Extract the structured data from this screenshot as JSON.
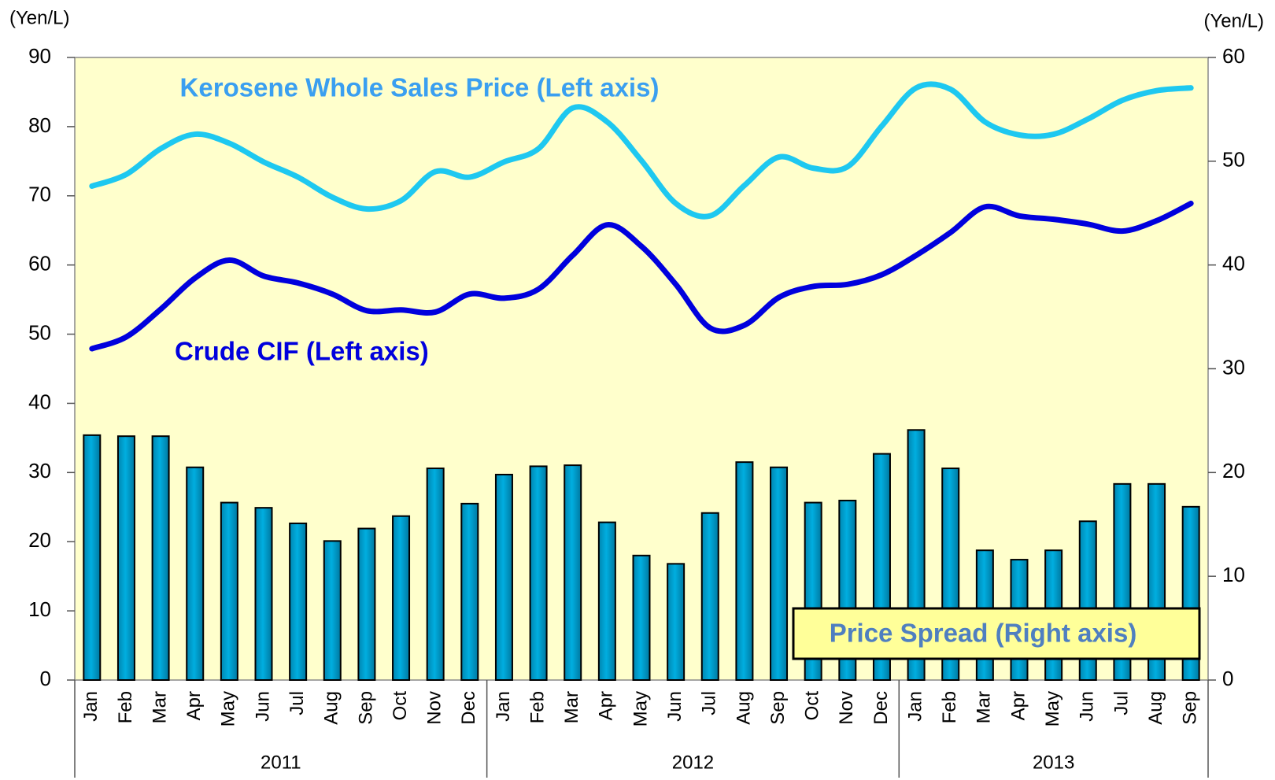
{
  "chart_data": {
    "type": "bar-line",
    "y_label": "(Yen/L)",
    "y2_label": "(Yen/L)",
    "categories": [
      "Jan",
      "Feb",
      "Mar",
      "Apr",
      "May",
      "Jun",
      "Jul",
      "Aug",
      "Sep",
      "Oct",
      "Nov",
      "Dec",
      "Jan",
      "Feb",
      "Mar",
      "Apr",
      "May",
      "Jun",
      "Jul",
      "Aug",
      "Sep",
      "Oct",
      "Nov",
      "Dec",
      "Jan",
      "Feb",
      "Mar",
      "Apr",
      "May",
      "Jun",
      "Jul",
      "Aug",
      "Sep"
    ],
    "x_groups": [
      "2011",
      "2012",
      "2013"
    ],
    "series": [
      {
        "name": "Kerosene Whole Sales Price (Left axis)",
        "kind": "line",
        "color": "#1ec8f0",
        "label_color": "#3a9ff0",
        "values": [
          71.4,
          73.1,
          76.8,
          78.9,
          77.6,
          74.9,
          72.7,
          69.8,
          68.1,
          69.3,
          73.5,
          72.7,
          74.9,
          76.8,
          82.7,
          80.7,
          75.1,
          68.9,
          67.1,
          71.5,
          75.6,
          74.0,
          74.2,
          80.1,
          85.6,
          85.4,
          80.7,
          78.8,
          78.9,
          81.1,
          83.8,
          85.2,
          85.6
        ]
      },
      {
        "name": "Crude CIF (Left axis)",
        "kind": "line",
        "color": "#0000dd",
        "label_color": "#0000dd",
        "values": [
          47.9,
          49.6,
          53.6,
          58.1,
          60.7,
          58.4,
          57.4,
          55.8,
          53.4,
          53.5,
          53.2,
          55.8,
          55.2,
          56.5,
          61.4,
          65.8,
          62.7,
          57.2,
          50.9,
          51.3,
          55.3,
          56.9,
          57.2,
          58.6,
          61.4,
          64.7,
          68.4,
          67.1,
          66.6,
          65.9,
          64.9,
          66.4,
          68.9
        ]
      },
      {
        "name": "Price Spread (Right axis)",
        "kind": "bar",
        "axis": "y2",
        "color": "#00aee0",
        "label_color": "#4f7fc0",
        "values": [
          23.6,
          23.5,
          23.5,
          20.5,
          17.1,
          16.6,
          15.1,
          13.4,
          14.6,
          15.8,
          20.4,
          17.0,
          19.8,
          20.6,
          20.7,
          15.2,
          12.0,
          11.2,
          16.1,
          21.0,
          20.5,
          17.1,
          17.3,
          21.8,
          24.1,
          20.4,
          12.5,
          11.6,
          12.5,
          15.3,
          18.9,
          18.9,
          16.7
        ]
      }
    ],
    "ylim": [
      0,
      90
    ],
    "yticks": [
      0,
      10,
      20,
      30,
      40,
      50,
      60,
      70,
      80,
      90
    ],
    "y2lim": [
      0,
      60
    ],
    "y2ticks": [
      0,
      10,
      20,
      30,
      40,
      50,
      60
    ],
    "plot_background": "#ffffcc"
  }
}
